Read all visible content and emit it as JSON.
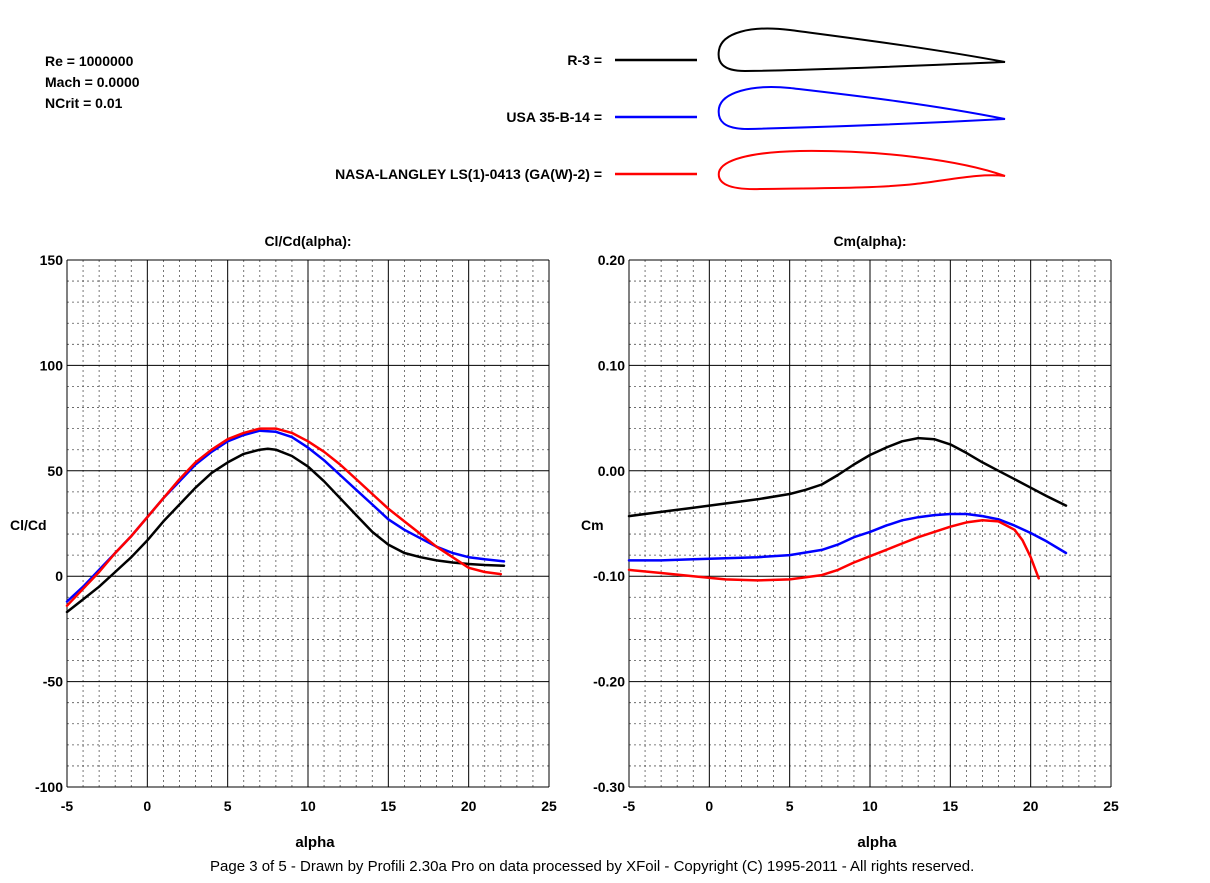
{
  "params": {
    "re": "Re = 1000000",
    "mach": "Mach = 0.0000",
    "ncrit": "NCrit = 0.01"
  },
  "legend": [
    {
      "label": "R-3 =",
      "color": "#000000"
    },
    {
      "label": "USA 35-B-14 =",
      "color": "#0000ff"
    },
    {
      "label": "NASA-LANGLEY LS(1)-0413 (GA(W)-2) =",
      "color": "#ff0000"
    }
  ],
  "footer": "Page 3 of 5   -   Drawn by Profili 2.30a Pro on data processed by  XFoil - Copyright (C) 1995-2011 - All rights reserved.",
  "chart_data": [
    {
      "type": "line",
      "title": "Cl/Cd(alpha):",
      "xlabel": "alpha",
      "ylabel": "Cl/Cd",
      "xlim": [
        -5,
        25
      ],
      "ylim": [
        -100,
        150
      ],
      "xticks": [
        "-5",
        "0",
        "5",
        "10",
        "15",
        "20",
        "25"
      ],
      "yticks": [
        "-100",
        "-50",
        "0",
        "50",
        "100",
        "150"
      ],
      "grid": true,
      "series": [
        {
          "name": "R-3",
          "color": "#000000",
          "x": [
            -5,
            -4,
            -3,
            -2,
            -1,
            0,
            1,
            2,
            3,
            4,
            5,
            6,
            7,
            7.5,
            8,
            9,
            10,
            11,
            12,
            13,
            14,
            15,
            16,
            17,
            18,
            19,
            20,
            21,
            22.2
          ],
          "y": [
            -17,
            -11,
            -5,
            2,
            9,
            17,
            26,
            34,
            42,
            49,
            54,
            58,
            60,
            60.5,
            60,
            57,
            52,
            45,
            37,
            29,
            21,
            15,
            11,
            9,
            7.5,
            6.5,
            5.8,
            5.3,
            5
          ]
        },
        {
          "name": "USA 35-B-14",
          "color": "#0000ff",
          "x": [
            -5,
            -4,
            -3,
            -2,
            -1,
            0,
            1,
            2,
            3,
            4,
            5,
            6,
            7,
            8,
            9,
            10,
            11,
            12,
            13,
            14,
            15,
            16,
            17,
            18,
            19,
            20,
            21,
            22.2
          ],
          "y": [
            -12,
            -5,
            3,
            11,
            19,
            28,
            37,
            45,
            53,
            59,
            64,
            67,
            69,
            68.5,
            66,
            61,
            55,
            48,
            41,
            34,
            27,
            22,
            18,
            14,
            11,
            9,
            8,
            7
          ]
        },
        {
          "name": "NASA-LANGLEY LS(1)-0413 (GA(W)-2)",
          "color": "#ff0000",
          "x": [
            -5,
            -4,
            -3,
            -2,
            -1,
            0,
            1,
            2,
            3,
            4,
            5,
            6,
            7,
            8,
            9,
            10,
            11,
            12,
            13,
            14,
            15,
            16,
            17,
            18,
            19,
            20,
            21,
            22
          ],
          "y": [
            -14,
            -6,
            2,
            11,
            19,
            28,
            37,
            46,
            54,
            60,
            65,
            68,
            70,
            70,
            68,
            64,
            59,
            53,
            46,
            39,
            32,
            26,
            20,
            14,
            9,
            4,
            2,
            1
          ]
        }
      ]
    },
    {
      "type": "line",
      "title": "Cm(alpha):",
      "xlabel": "alpha",
      "ylabel": "Cm",
      "xlim": [
        -5,
        25
      ],
      "ylim": [
        -0.3,
        0.2
      ],
      "xticks": [
        "-5",
        "0",
        "5",
        "10",
        "15",
        "20",
        "25"
      ],
      "yticks": [
        "-0.30",
        "-0.20",
        "-0.10",
        "0.00",
        "0.10",
        "0.20"
      ],
      "grid": true,
      "series": [
        {
          "name": "R-3",
          "color": "#000000",
          "x": [
            -5,
            -3,
            -1,
            1,
            3,
            5,
            6,
            7,
            8,
            9,
            10,
            11,
            12,
            13,
            14,
            15,
            16,
            17,
            18,
            19,
            20,
            21,
            22.2
          ],
          "y": [
            -0.043,
            -0.039,
            -0.035,
            -0.031,
            -0.027,
            -0.022,
            -0.018,
            -0.013,
            -0.004,
            0.006,
            0.015,
            0.022,
            0.028,
            0.031,
            0.03,
            0.025,
            0.017,
            0.008,
            0.0,
            -0.008,
            -0.016,
            -0.024,
            -0.033
          ]
        },
        {
          "name": "USA 35-B-14",
          "color": "#0000ff",
          "x": [
            -5,
            -3,
            -1,
            1,
            3,
            5,
            7,
            8,
            9,
            10,
            11,
            12,
            13,
            14,
            15,
            16,
            17,
            18,
            19,
            20,
            21,
            22.2
          ],
          "y": [
            -0.085,
            -0.085,
            -0.084,
            -0.083,
            -0.082,
            -0.08,
            -0.075,
            -0.07,
            -0.063,
            -0.058,
            -0.052,
            -0.047,
            -0.044,
            -0.042,
            -0.041,
            -0.041,
            -0.043,
            -0.046,
            -0.052,
            -0.059,
            -0.067,
            -0.078
          ]
        },
        {
          "name": "NASA-LANGLEY LS(1)-0413 (GA(W)-2)",
          "color": "#ff0000",
          "x": [
            -5,
            -3,
            -1,
            1,
            3,
            5,
            7,
            8,
            9,
            10,
            11,
            12,
            13,
            14,
            15,
            16,
            17,
            18,
            19,
            19.5,
            20,
            20.5
          ],
          "y": [
            -0.094,
            -0.097,
            -0.1,
            -0.103,
            -0.104,
            -0.103,
            -0.099,
            -0.094,
            -0.087,
            -0.081,
            -0.075,
            -0.069,
            -0.063,
            -0.058,
            -0.053,
            -0.049,
            -0.047,
            -0.048,
            -0.056,
            -0.066,
            -0.082,
            -0.102
          ]
        }
      ]
    }
  ]
}
